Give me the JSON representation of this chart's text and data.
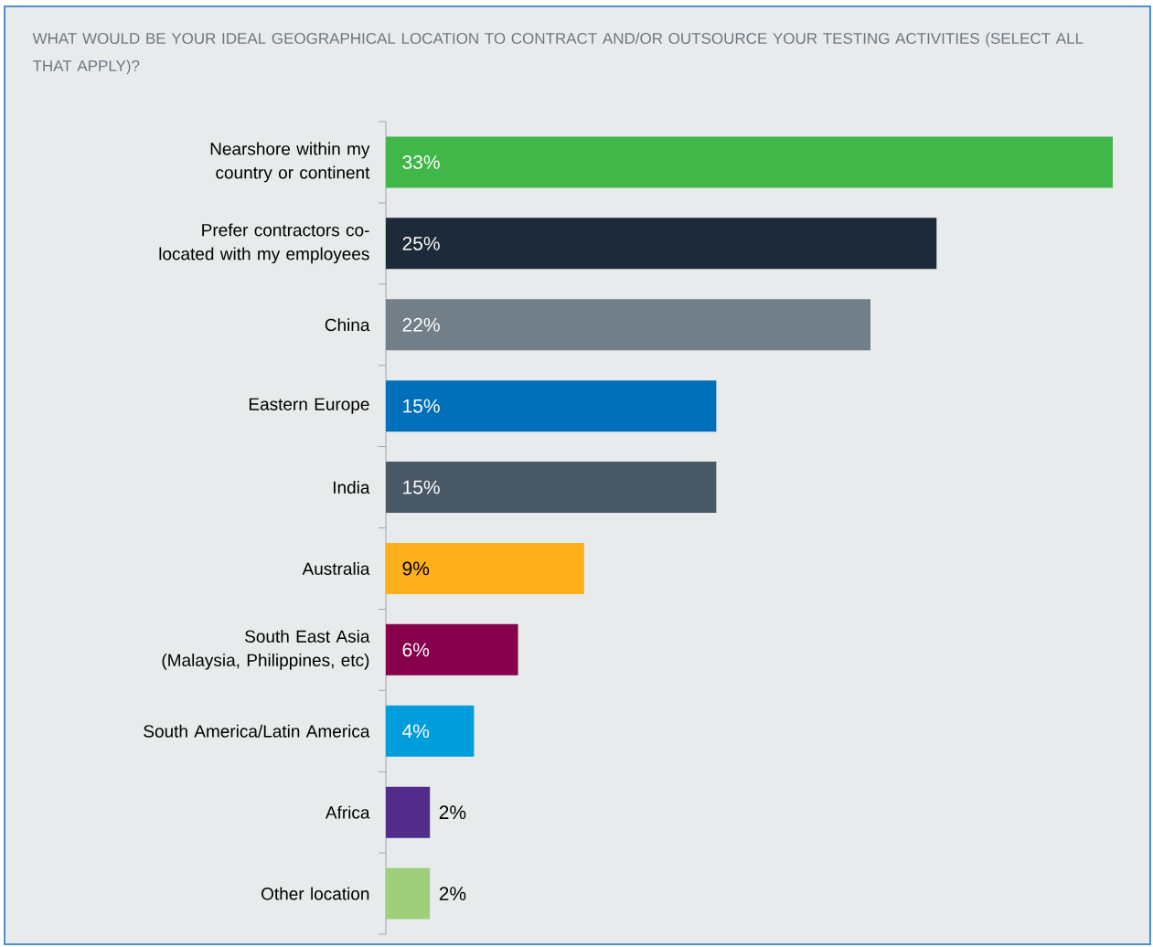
{
  "chart_data": {
    "type": "bar",
    "orientation": "horizontal",
    "title": "WHAT WOULD BE YOUR IDEAL GEOGRAPHICAL LOCATION TO CONTRACT AND/OR OUTSOURCE YOUR TESTING ACTIVITIES (SELECT ALL THAT APPLY)?",
    "categories": [
      "Nearshore within my country or continent",
      "Prefer contractors co-located with my employees",
      "China",
      "Eastern Europe",
      "India",
      "Australia",
      "South East Asia (Malaysia, Philippines, etc)",
      "South America/Latin America",
      "Africa",
      "Other location"
    ],
    "values": [
      33,
      25,
      22,
      15,
      15,
      9,
      6,
      4,
      2,
      2
    ],
    "value_labels": [
      "33%",
      "25%",
      "22%",
      "15%",
      "15%",
      "9%",
      "6%",
      "4%",
      "2%",
      "2%"
    ],
    "colors": [
      "#41b649",
      "#1c2a3a",
      "#727f88",
      "#0070ba",
      "#495865",
      "#fdb019",
      "#87004c",
      "#009ddd",
      "#532d8c",
      "#9ecf7b"
    ]
  }
}
